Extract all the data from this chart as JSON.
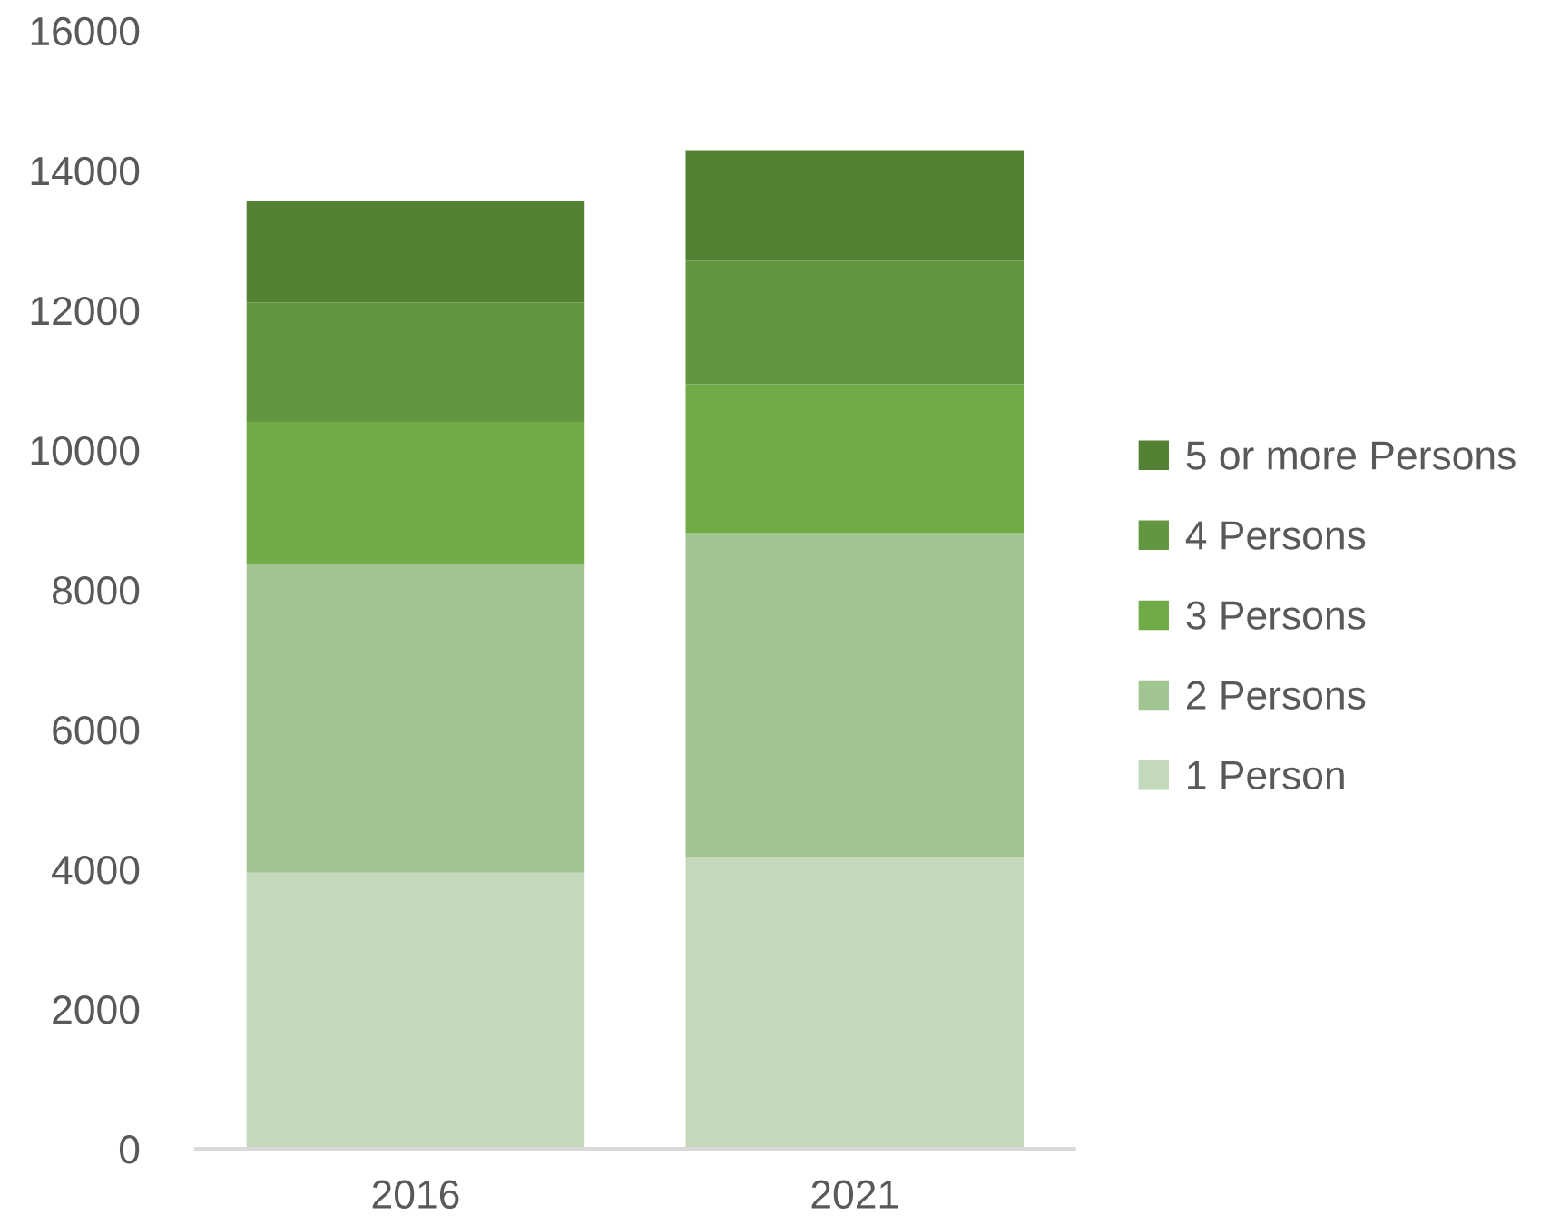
{
  "chart_data": {
    "type": "bar",
    "stacked": true,
    "categories": [
      "2016",
      "2021"
    ],
    "series": [
      {
        "name": "1 Person",
        "color": "#c4d8bc",
        "values": [
          3950,
          4180
        ]
      },
      {
        "name": "2 Persons",
        "color": "#a2c490",
        "values": [
          4420,
          4630
        ]
      },
      {
        "name": "3 Persons",
        "color": "#70ab48",
        "values": [
          2030,
          2130
        ]
      },
      {
        "name": "4 Persons",
        "color": "#62973f",
        "values": [
          1710,
          1770
        ]
      },
      {
        "name": "5 or more Persons",
        "color": "#548235",
        "values": [
          1450,
          1580
        ]
      }
    ],
    "ylim": [
      0,
      16000
    ],
    "yticks": [
      0,
      2000,
      4000,
      6000,
      8000,
      10000,
      12000,
      14000,
      16000
    ],
    "legend": "right"
  }
}
